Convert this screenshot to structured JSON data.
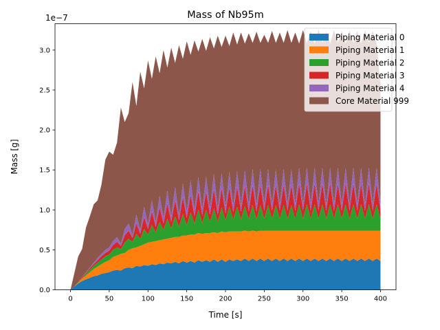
{
  "chart_data": {
    "type": "area",
    "stacked": true,
    "title": "Mass of Nb95m",
    "xlabel": "Time [s]",
    "ylabel": "Mass [g]",
    "y_offset_label": "1e−7",
    "y_scale_factor": 1e-07,
    "xlim": [
      -20,
      420
    ],
    "ylim": [
      0,
      3.33
    ],
    "x_ticks": [
      0,
      50,
      100,
      150,
      200,
      250,
      300,
      350,
      400
    ],
    "x_tick_labels": [
      "0",
      "50",
      "100",
      "150",
      "200",
      "250",
      "300",
      "350",
      "400"
    ],
    "y_ticks": [
      0,
      0.5,
      1.0,
      1.5,
      2.0,
      2.5,
      3.0
    ],
    "y_tick_labels": [
      "0.0",
      "0.5",
      "1.0",
      "1.5",
      "2.0",
      "2.5",
      "3.0"
    ],
    "grid": false,
    "legend_position": "top-right",
    "x": [
      0,
      5,
      10,
      15,
      20,
      25,
      30,
      35,
      40,
      45,
      50,
      55,
      60,
      65,
      70,
      75,
      80,
      85,
      90,
      95,
      100,
      105,
      110,
      115,
      120,
      125,
      130,
      135,
      140,
      145,
      150,
      155,
      160,
      165,
      170,
      175,
      180,
      185,
      190,
      195,
      200,
      205,
      210,
      215,
      220,
      225,
      230,
      235,
      240,
      245,
      250,
      255,
      260,
      265,
      270,
      275,
      280,
      285,
      290,
      295,
      300,
      305,
      310,
      315,
      320,
      325,
      330,
      335,
      340,
      345,
      350,
      355,
      360,
      365,
      370,
      375,
      380,
      385,
      390,
      395,
      400
    ],
    "series": [
      {
        "name": "Piping Material 0",
        "color": "#1f77b4",
        "values": [
          0,
          0.04,
          0.08,
          0.11,
          0.13,
          0.15,
          0.17,
          0.18,
          0.2,
          0.21,
          0.22,
          0.24,
          0.25,
          0.24,
          0.27,
          0.28,
          0.27,
          0.3,
          0.29,
          0.31,
          0.3,
          0.32,
          0.31,
          0.33,
          0.32,
          0.34,
          0.33,
          0.35,
          0.33,
          0.36,
          0.34,
          0.36,
          0.34,
          0.37,
          0.35,
          0.37,
          0.35,
          0.38,
          0.35,
          0.38,
          0.35,
          0.38,
          0.36,
          0.38,
          0.36,
          0.39,
          0.36,
          0.39,
          0.36,
          0.39,
          0.36,
          0.39,
          0.36,
          0.39,
          0.36,
          0.39,
          0.36,
          0.39,
          0.36,
          0.39,
          0.36,
          0.39,
          0.36,
          0.39,
          0.36,
          0.39,
          0.36,
          0.39,
          0.36,
          0.39,
          0.36,
          0.39,
          0.36,
          0.39,
          0.36,
          0.39,
          0.36,
          0.39,
          0.36,
          0.39,
          0.36
        ]
      },
      {
        "name": "Piping Material 1",
        "color": "#ff7f0e",
        "values": [
          0,
          0.0,
          0.01,
          0.03,
          0.05,
          0.07,
          0.09,
          0.11,
          0.12,
          0.14,
          0.15,
          0.17,
          0.18,
          0.21,
          0.19,
          0.22,
          0.25,
          0.23,
          0.26,
          0.26,
          0.29,
          0.28,
          0.3,
          0.29,
          0.31,
          0.3,
          0.32,
          0.31,
          0.33,
          0.32,
          0.34,
          0.33,
          0.35,
          0.34,
          0.35,
          0.34,
          0.36,
          0.34,
          0.36,
          0.35,
          0.37,
          0.35,
          0.37,
          0.35,
          0.37,
          0.35,
          0.37,
          0.35,
          0.37,
          0.35,
          0.38,
          0.35,
          0.38,
          0.35,
          0.38,
          0.35,
          0.38,
          0.35,
          0.38,
          0.35,
          0.38,
          0.35,
          0.38,
          0.35,
          0.38,
          0.35,
          0.38,
          0.35,
          0.38,
          0.35,
          0.38,
          0.35,
          0.38,
          0.35,
          0.38,
          0.35,
          0.38,
          0.35,
          0.38,
          0.35,
          0.38
        ]
      },
      {
        "name": "Piping Material 2",
        "color": "#2ca02c",
        "values": [
          0,
          0.0,
          0.01,
          0.01,
          0.02,
          0.03,
          0.04,
          0.05,
          0.06,
          0.07,
          0.07,
          0.09,
          0.1,
          0.06,
          0.13,
          0.14,
          0.08,
          0.17,
          0.09,
          0.19,
          0.1,
          0.21,
          0.11,
          0.23,
          0.12,
          0.25,
          0.12,
          0.26,
          0.13,
          0.27,
          0.13,
          0.28,
          0.14,
          0.29,
          0.14,
          0.29,
          0.14,
          0.3,
          0.14,
          0.3,
          0.15,
          0.31,
          0.15,
          0.31,
          0.15,
          0.31,
          0.15,
          0.32,
          0.15,
          0.32,
          0.15,
          0.32,
          0.15,
          0.32,
          0.15,
          0.32,
          0.15,
          0.32,
          0.15,
          0.33,
          0.15,
          0.33,
          0.15,
          0.33,
          0.15,
          0.33,
          0.15,
          0.33,
          0.15,
          0.33,
          0.15,
          0.33,
          0.15,
          0.33,
          0.15,
          0.33,
          0.15,
          0.33,
          0.15,
          0.33,
          0.15
        ]
      },
      {
        "name": "Piping Material 3",
        "color": "#d62728",
        "values": [
          0,
          0.0,
          0.0,
          0.01,
          0.01,
          0.02,
          0.02,
          0.03,
          0.04,
          0.04,
          0.05,
          0.06,
          0.07,
          0.04,
          0.09,
          0.1,
          0.05,
          0.13,
          0.06,
          0.15,
          0.07,
          0.17,
          0.07,
          0.18,
          0.08,
          0.19,
          0.08,
          0.2,
          0.08,
          0.21,
          0.09,
          0.22,
          0.09,
          0.23,
          0.09,
          0.23,
          0.09,
          0.24,
          0.09,
          0.24,
          0.09,
          0.24,
          0.09,
          0.25,
          0.1,
          0.25,
          0.1,
          0.25,
          0.1,
          0.25,
          0.1,
          0.25,
          0.1,
          0.25,
          0.1,
          0.25,
          0.1,
          0.25,
          0.1,
          0.26,
          0.1,
          0.26,
          0.1,
          0.26,
          0.1,
          0.26,
          0.1,
          0.26,
          0.1,
          0.26,
          0.1,
          0.26,
          0.1,
          0.26,
          0.1,
          0.26,
          0.1,
          0.26,
          0.1,
          0.26,
          0.1
        ]
      },
      {
        "name": "Piping Material 4",
        "color": "#9467bd",
        "values": [
          0,
          0.0,
          0.0,
          0.0,
          0.01,
          0.01,
          0.02,
          0.03,
          0.03,
          0.04,
          0.04,
          0.05,
          0.06,
          0.03,
          0.08,
          0.09,
          0.04,
          0.11,
          0.05,
          0.13,
          0.06,
          0.14,
          0.06,
          0.15,
          0.07,
          0.16,
          0.07,
          0.17,
          0.07,
          0.17,
          0.08,
          0.18,
          0.08,
          0.18,
          0.08,
          0.19,
          0.08,
          0.19,
          0.08,
          0.19,
          0.08,
          0.2,
          0.08,
          0.2,
          0.08,
          0.2,
          0.08,
          0.2,
          0.08,
          0.2,
          0.08,
          0.2,
          0.08,
          0.2,
          0.08,
          0.2,
          0.08,
          0.2,
          0.08,
          0.2,
          0.08,
          0.2,
          0.08,
          0.2,
          0.08,
          0.2,
          0.08,
          0.2,
          0.08,
          0.2,
          0.08,
          0.2,
          0.08,
          0.2,
          0.08,
          0.2,
          0.08,
          0.2,
          0.08,
          0.2,
          0.08
        ]
      },
      {
        "name": "Core Material 999",
        "color": "#8c564b",
        "values": [
          0,
          0.17,
          0.32,
          0.35,
          0.56,
          0.64,
          0.73,
          0.72,
          0.87,
          1.13,
          1.2,
          1.08,
          1.18,
          1.7,
          1.34,
          1.38,
          1.91,
          1.36,
          1.98,
          1.48,
          2.05,
          1.52,
          2.07,
          1.53,
          2.1,
          1.54,
          2.11,
          1.55,
          2.12,
          1.56,
          2.13,
          1.57,
          2.12,
          1.57,
          2.13,
          1.57,
          2.14,
          1.57,
          2.16,
          1.58,
          2.14,
          1.57,
          2.17,
          1.58,
          2.16,
          1.58,
          2.15,
          1.58,
          2.17,
          1.58,
          2.12,
          1.58,
          2.17,
          1.58,
          2.15,
          1.58,
          2.18,
          1.58,
          2.15,
          1.55,
          2.18,
          1.56,
          2.17,
          1.55,
          2.19,
          1.56,
          2.16,
          1.55,
          2.18,
          1.56,
          2.17,
          1.55,
          2.18,
          1.56,
          2.17,
          1.55,
          2.18,
          1.56,
          2.17,
          1.55,
          1.5
        ]
      }
    ]
  }
}
